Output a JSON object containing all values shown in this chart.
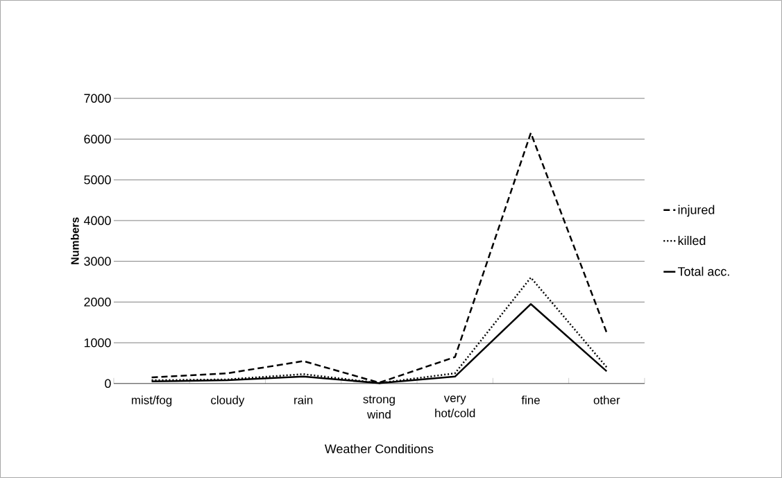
{
  "chart_data": {
    "type": "line",
    "xlabel": "Weather Conditions",
    "ylabel": "Numbers",
    "categories": [
      "mist/fog",
      "cloudy",
      "rain",
      "strong\nwind",
      "very\nhot/cold",
      "fine",
      "other"
    ],
    "series": [
      {
        "name": "injured",
        "color": "#000000",
        "line_style": "dashed",
        "values": [
          150,
          250,
          550,
          20,
          650,
          6150,
          1250
        ]
      },
      {
        "name": "killed",
        "color": "#000000",
        "line_style": "dotted",
        "values": [
          80,
          100,
          230,
          10,
          250,
          2600,
          400
        ]
      },
      {
        "name": "Total acc.",
        "color": "#000000",
        "line_style": "solid",
        "values": [
          50,
          80,
          170,
          10,
          170,
          1950,
          300
        ]
      }
    ],
    "ylim": [
      0,
      7000
    ],
    "yticks": [
      0,
      1000,
      2000,
      3000,
      4000,
      5000,
      6000,
      7000
    ],
    "grid": "y",
    "legend": "right",
    "marker": "none"
  }
}
